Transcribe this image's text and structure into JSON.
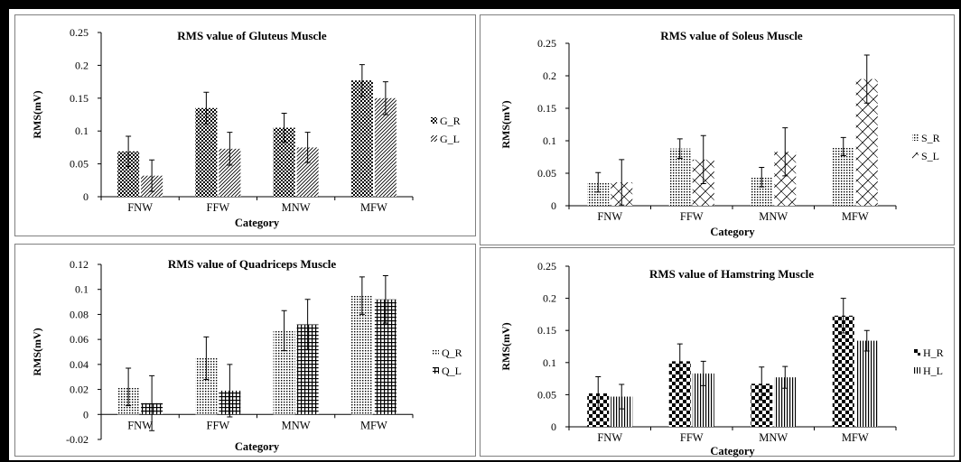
{
  "chart_data": [
    {
      "type": "bar",
      "title": "RMS value of Gluteus Muscle",
      "xlabel": "Category",
      "ylabel": "RMS(mV)",
      "categories": [
        "FNW",
        "FFW",
        "MNW",
        "MFW"
      ],
      "ylim": [
        0,
        0.25
      ],
      "yticks": [
        "0",
        "0.05",
        "0.1",
        "0.15",
        "0.2",
        "0.25"
      ],
      "legend_position": "right",
      "series": [
        {
          "name": "G_R",
          "pattern": "checker",
          "values": [
            0.069,
            0.135,
            0.105,
            0.177
          ],
          "error": [
            0.023,
            0.024,
            0.022,
            0.024
          ]
        },
        {
          "name": "G_L",
          "pattern": "diagonal",
          "values": [
            0.032,
            0.073,
            0.075,
            0.15
          ],
          "error": [
            0.024,
            0.025,
            0.023,
            0.025
          ]
        }
      ]
    },
    {
      "type": "bar",
      "title": "RMS value of Soleus Muscle",
      "xlabel": "Category",
      "ylabel": "RMS(mV)",
      "categories": [
        "FNW",
        "FFW",
        "MNW",
        "MFW"
      ],
      "ylim": [
        0,
        0.25
      ],
      "yticks": [
        "0",
        "0.05",
        "0.1",
        "0.15",
        "0.2",
        "0.25"
      ],
      "legend_position": "right",
      "series": [
        {
          "name": "S_R",
          "pattern": "dots",
          "values": [
            0.036,
            0.088,
            0.044,
            0.091
          ],
          "error": [
            0.015,
            0.015,
            0.015,
            0.014
          ]
        },
        {
          "name": "S_L",
          "pattern": "zigzag",
          "values": [
            0.036,
            0.071,
            0.083,
            0.195
          ],
          "error": [
            0.035,
            0.037,
            0.037,
            0.037
          ]
        }
      ]
    },
    {
      "type": "bar",
      "title": "RMS value of Quadriceps Muscle",
      "xlabel": "Category",
      "ylabel": "RMS(mV)",
      "categories": [
        "FNW",
        "FFW",
        "MNW",
        "MFW"
      ],
      "ylim": [
        -0.02,
        0.12
      ],
      "yticks": [
        "-0.02",
        "0",
        "0.02",
        "0.04",
        "0.06",
        "0.08",
        "0.1",
        "0.12"
      ],
      "legend_position": "right",
      "series": [
        {
          "name": "Q_R",
          "pattern": "dots",
          "values": [
            0.022,
            0.045,
            0.067,
            0.095
          ],
          "error": [
            0.015,
            0.017,
            0.016,
            0.015
          ]
        },
        {
          "name": "Q_L",
          "pattern": "grid",
          "values": [
            0.009,
            0.019,
            0.072,
            0.092
          ],
          "error": [
            0.022,
            0.021,
            0.02,
            0.019
          ]
        }
      ]
    },
    {
      "type": "bar",
      "title": "RMS value of Hamstring Muscle",
      "xlabel": "Category",
      "ylabel": "RMS(mV)",
      "categories": [
        "FNW",
        "FFW",
        "MNW",
        "MFW"
      ],
      "ylim": [
        0,
        0.25
      ],
      "yticks": [
        "0",
        "0.05",
        "0.1",
        "0.15",
        "0.2",
        "0.25"
      ],
      "legend_position": "right",
      "series": [
        {
          "name": "H_R",
          "pattern": "bigchecker",
          "values": [
            0.052,
            0.102,
            0.067,
            0.173
          ],
          "error": [
            0.026,
            0.027,
            0.026,
            0.027
          ]
        },
        {
          "name": "H_L",
          "pattern": "vertical",
          "values": [
            0.047,
            0.083,
            0.077,
            0.134
          ],
          "error": [
            0.019,
            0.019,
            0.017,
            0.016
          ]
        }
      ]
    }
  ]
}
